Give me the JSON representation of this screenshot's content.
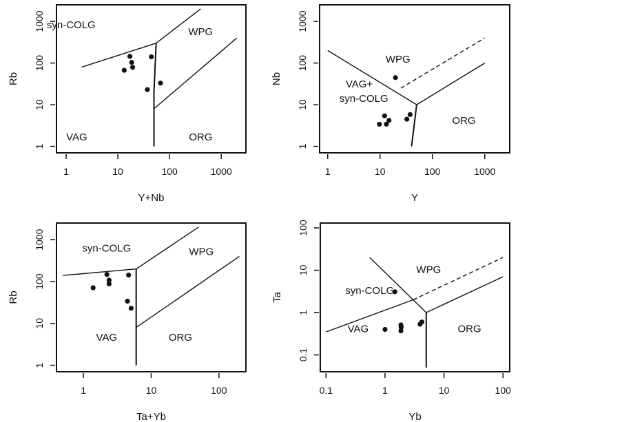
{
  "figure": {
    "colors": {
      "ink": "#111111",
      "background": "#ffffff"
    }
  },
  "chart_data": [
    {
      "type": "scatter",
      "id": "rb-vs-ynb",
      "title": "",
      "xlabel": "Y+Nb",
      "ylabel": "Rb",
      "xscale": "log",
      "yscale": "log",
      "xlim": [
        0.65,
        3000
      ],
      "ylim": [
        0.7,
        2500
      ],
      "xticks": [
        1,
        10,
        100,
        1000
      ],
      "xtick_labels": [
        "1",
        "10",
        "100",
        "1000"
      ],
      "yticks": [
        1,
        10,
        100,
        1000
      ],
      "ytick_labels": [
        "1",
        "10",
        "100",
        "1000"
      ],
      "grid": false,
      "points": [
        {
          "x": 17.1,
          "y": 145
        },
        {
          "x": 18.5,
          "y": 104
        },
        {
          "x": 19.3,
          "y": 79
        },
        {
          "x": 13.3,
          "y": 67
        },
        {
          "x": 44.5,
          "y": 141
        },
        {
          "x": 66.8,
          "y": 33
        },
        {
          "x": 37.2,
          "y": 23
        }
      ],
      "boundaries": [
        {
          "name": "syn-colg-vag-boundary",
          "style": "solid",
          "points": [
            [
              2,
              80
            ],
            [
              55,
              300
            ]
          ]
        },
        {
          "name": "wpg-syncolg-boundary",
          "style": "solid",
          "points": [
            [
              55,
              300
            ],
            [
              400,
              2000
            ]
          ]
        },
        {
          "name": "org-wpg-boundary",
          "style": "solid",
          "points": [
            [
              50,
              8
            ],
            [
              2000,
              400
            ]
          ]
        },
        {
          "name": "vag-org-boundary",
          "style": "solid",
          "points": [
            [
              50,
              1
            ],
            [
              50,
              20
            ],
            [
              55,
              300
            ]
          ]
        }
      ],
      "region_labels": [
        {
          "text": "syn-COLG",
          "x": 1.25,
          "y": 800
        },
        {
          "text": "WPG",
          "x": 400,
          "y": 550
        },
        {
          "text": "VAG",
          "x": 1.6,
          "y": 1.6
        },
        {
          "text": "ORG",
          "x": 400,
          "y": 1.6
        }
      ]
    },
    {
      "type": "scatter",
      "id": "nb-vs-y",
      "title": "",
      "xlabel": "Y",
      "ylabel": "Nb",
      "xscale": "log",
      "yscale": "log",
      "xlim": [
        0.7,
        3000
      ],
      "ylim": [
        0.7,
        2500
      ],
      "xticks": [
        1,
        10,
        100,
        1000
      ],
      "xtick_labels": [
        "1",
        "10",
        "100",
        "1000"
      ],
      "yticks": [
        1,
        10,
        100,
        1000
      ],
      "ytick_labels": [
        "1",
        "10",
        "100",
        "1000"
      ],
      "grid": false,
      "points": [
        {
          "x": 19.7,
          "y": 44.7
        },
        {
          "x": 12.2,
          "y": 5.4
        },
        {
          "x": 14.8,
          "y": 4.2
        },
        {
          "x": 13.2,
          "y": 3.4
        },
        {
          "x": 9.7,
          "y": 3.4
        },
        {
          "x": 37.5,
          "y": 5.8
        },
        {
          "x": 32.5,
          "y": 4.5
        }
      ],
      "boundaries": [
        {
          "name": "vagsyncolg-wpg-boundary",
          "style": "solid",
          "points": [
            [
              1,
              200
            ],
            [
              50,
              10
            ]
          ]
        },
        {
          "name": "wpg-org-boundary",
          "style": "solid",
          "points": [
            [
              50,
              10
            ],
            [
              1000,
              100
            ]
          ]
        },
        {
          "name": "vag-org-boundary",
          "style": "solid",
          "points": [
            [
              50,
              10
            ],
            [
              40,
              1
            ]
          ]
        },
        {
          "name": "orgwpg-dashed-boundary",
          "style": "dashed",
          "points": [
            [
              25,
              25
            ],
            [
              1000,
              400
            ]
          ]
        }
      ],
      "region_labels": [
        {
          "text": "WPG",
          "x": 22,
          "y": 120
        },
        {
          "text": "VAG+",
          "x": 4,
          "y": 30
        },
        {
          "text": "syn-COLG",
          "x": 4.9,
          "y": 13.5
        },
        {
          "text": "ORG",
          "x": 400,
          "y": 4
        }
      ]
    },
    {
      "type": "scatter",
      "id": "rb-vs-tayb",
      "title": "",
      "xlabel": "Ta+Yb",
      "ylabel": "Rb",
      "xscale": "log",
      "yscale": "log",
      "xlim": [
        0.4,
        250
      ],
      "ylim": [
        0.7,
        2500
      ],
      "xticks": [
        1,
        10,
        100
      ],
      "xtick_labels": [
        "1",
        "10",
        "100"
      ],
      "yticks": [
        1,
        10,
        100,
        1000
      ],
      "ytick_labels": [
        "1",
        "10",
        "100",
        "1000"
      ],
      "grid": false,
      "points": [
        {
          "x": 2.22,
          "y": 148
        },
        {
          "x": 2.39,
          "y": 108
        },
        {
          "x": 2.39,
          "y": 88
        },
        {
          "x": 1.39,
          "y": 71
        },
        {
          "x": 4.64,
          "y": 143
        },
        {
          "x": 4.46,
          "y": 34
        },
        {
          "x": 5.06,
          "y": 23
        }
      ],
      "boundaries": [
        {
          "name": "syn-colg-vag-boundary",
          "style": "solid",
          "points": [
            [
              0.5,
              140
            ],
            [
              6,
              200
            ]
          ]
        },
        {
          "name": "wpg-syncolg-boundary",
          "style": "solid",
          "points": [
            [
              6,
              200
            ],
            [
              50,
              2000
            ]
          ]
        },
        {
          "name": "org-wpg-boundary",
          "style": "solid",
          "points": [
            [
              6,
              8
            ],
            [
              200,
              400
            ]
          ]
        },
        {
          "name": "vag-org-boundary",
          "style": "solid",
          "points": [
            [
              6,
              1
            ],
            [
              6,
              200
            ]
          ]
        }
      ],
      "region_labels": [
        {
          "text": "syn-COLG",
          "x": 2.2,
          "y": 600
        },
        {
          "text": "WPG",
          "x": 55,
          "y": 500
        },
        {
          "text": "VAG",
          "x": 2.2,
          "y": 4.5
        },
        {
          "text": "ORG",
          "x": 27,
          "y": 4.5
        }
      ]
    },
    {
      "type": "scatter",
      "id": "ta-vs-yb",
      "title": "",
      "xlabel": "Yb",
      "ylabel": "Ta",
      "xscale": "log",
      "yscale": "log",
      "xlim": [
        0.08,
        130
      ],
      "ylim": [
        0.04,
        130
      ],
      "xticks": [
        0.1,
        1,
        10,
        100
      ],
      "xtick_labels": [
        "0.1",
        "1",
        "10",
        "100"
      ],
      "yticks": [
        0.1,
        1,
        10,
        100
      ],
      "ytick_labels": [
        "0.1",
        "1",
        "10",
        "100"
      ],
      "grid": false,
      "points": [
        {
          "x": 1.47,
          "y": 3.1
        },
        {
          "x": 1.0,
          "y": 0.4
        },
        {
          "x": 1.86,
          "y": 0.51
        },
        {
          "x": 1.88,
          "y": 0.45
        },
        {
          "x": 1.86,
          "y": 0.37
        },
        {
          "x": 3.93,
          "y": 0.53
        },
        {
          "x": 4.22,
          "y": 0.6
        }
      ],
      "boundaries": [
        {
          "name": "vag-syncolg-boundary",
          "style": "solid",
          "points": [
            [
              0.1,
              0.35
            ],
            [
              3,
              2
            ]
          ]
        },
        {
          "name": "wpg-syncolg-dashed-boundary",
          "style": "dashed",
          "points": [
            [
              3,
              2
            ],
            [
              100,
              20
            ]
          ]
        },
        {
          "name": "syncolg-wpg-boundary",
          "style": "solid",
          "points": [
            [
              0.55,
              20
            ],
            [
              5,
              1
            ]
          ]
        },
        {
          "name": "wpg-org-boundary",
          "style": "solid",
          "points": [
            [
              5,
              1
            ],
            [
              100,
              7
            ]
          ]
        },
        {
          "name": "vag-org-boundary",
          "style": "solid",
          "points": [
            [
              5,
              0.05
            ],
            [
              5,
              1
            ]
          ]
        }
      ],
      "region_labels": [
        {
          "text": "WPG",
          "x": 5.5,
          "y": 10
        },
        {
          "text": "syn-COLG",
          "x": 0.55,
          "y": 3.2
        },
        {
          "text": "VAG",
          "x": 0.35,
          "y": 0.4
        },
        {
          "text": "ORG",
          "x": 27,
          "y": 0.4
        }
      ]
    }
  ]
}
